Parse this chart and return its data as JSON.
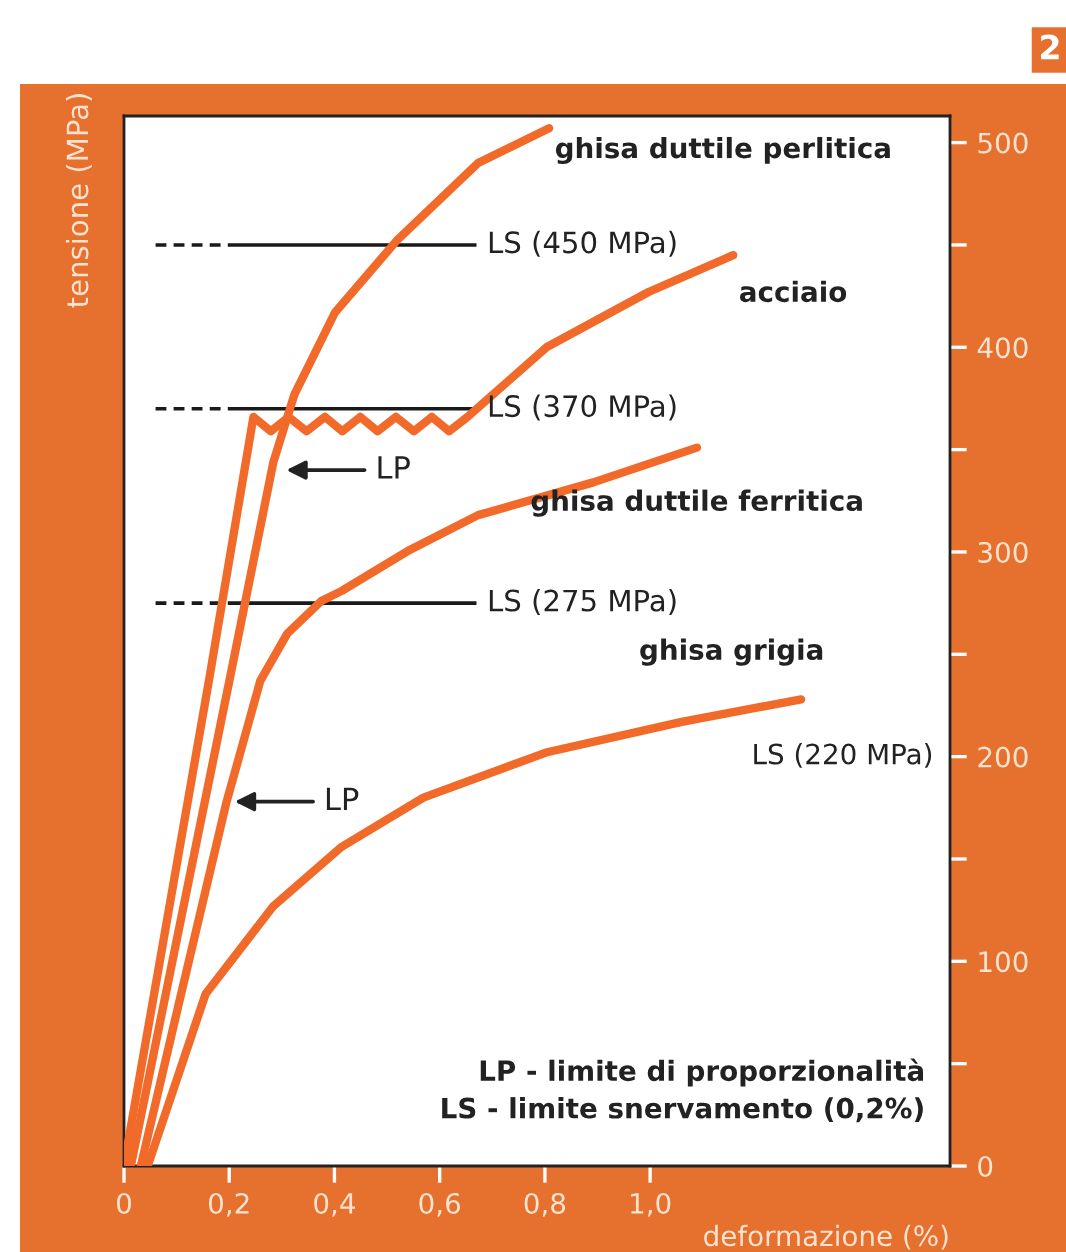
{
  "chart_data": {
    "type": "line",
    "xlabel": "deformazione (%)",
    "ylabel": "tensione (MPa)",
    "xlim": [
      0,
      1.57
    ],
    "ylim": [
      0,
      513
    ],
    "xticks": [
      0,
      {
        "value": 0.2,
        "label": "0,2"
      },
      {
        "value": 0.4,
        "label": "0,4"
      },
      {
        "value": 0.6,
        "label": "0,6"
      },
      {
        "value": 0.8,
        "label": "0,8"
      },
      {
        "value": 1.0,
        "label": "1,0"
      }
    ],
    "yticks": [
      0,
      {
        "value": 50,
        "label": null
      },
      100,
      {
        "value": 150,
        "label": null
      },
      200,
      {
        "value": 250,
        "label": null
      },
      300,
      {
        "value": 350,
        "label": null
      },
      400,
      {
        "value": 450,
        "label": null
      },
      500
    ],
    "grid": false,
    "legend": false,
    "marker": "none",
    "line_style": "solid",
    "series": [
      {
        "name": "ghisa duttile perlitica",
        "color": "#f26a2a",
        "x": [
          0.013,
          0.201,
          0.284,
          0.324,
          0.401,
          0.518,
          0.673,
          0.808
        ],
        "values": [
          0,
          238,
          344,
          377,
          417,
          452,
          490,
          507
        ]
      },
      {
        "name": "acciaio",
        "color": "#f26a2a",
        "x": [
          0,
          0.162,
          0.246,
          0.279,
          0.313,
          0.347,
          0.382,
          0.415,
          0.449,
          0.482,
          0.517,
          0.551,
          0.585,
          0.618,
          0.653,
          0.803,
          0.997,
          1.158
        ],
        "values": [
          0,
          238,
          366,
          359,
          366,
          359,
          366,
          359,
          366,
          359,
          366,
          359,
          366,
          359,
          366,
          400,
          427,
          445
        ]
      },
      {
        "name": "ghisa duttile ferritica",
        "color": "#f26a2a",
        "x": [
          0.032,
          0.103,
          0.194,
          0.259,
          0.31,
          0.375,
          0.414,
          0.543,
          0.673,
          0.892,
          1.089
        ],
        "values": [
          0,
          78,
          177,
          237,
          260,
          276,
          281,
          301,
          318,
          334,
          351
        ]
      },
      {
        "name": "ghisa grigia",
        "color": "#f26a2a",
        "x": [
          0.045,
          0.155,
          0.284,
          0.414,
          0.569,
          0.802,
          1.06,
          1.287
        ],
        "values": [
          0,
          84,
          127,
          156,
          180,
          202,
          217,
          228
        ]
      }
    ],
    "ref_lines": [
      {
        "axis": "y",
        "value": 450,
        "label": "LS (450 MPa)",
        "color": "#1a1a1a"
      },
      {
        "axis": "y",
        "value": 370,
        "label": "LS (370 MPa)",
        "color": "#1a1a1a"
      },
      {
        "axis": "y",
        "value": 275,
        "label": "LS (275 MPa)",
        "color": "#1a1a1a"
      }
    ],
    "annotations": [
      {
        "text": "LP",
        "x": 0.298,
        "y": 340
      },
      {
        "text": "LP",
        "x": 0.2,
        "y": 178
      },
      "LS (220 MPa)",
      "LP - limite di proporzionalità\nLS - limite snervamento (0,2%)",
      "2"
    ]
  }
}
